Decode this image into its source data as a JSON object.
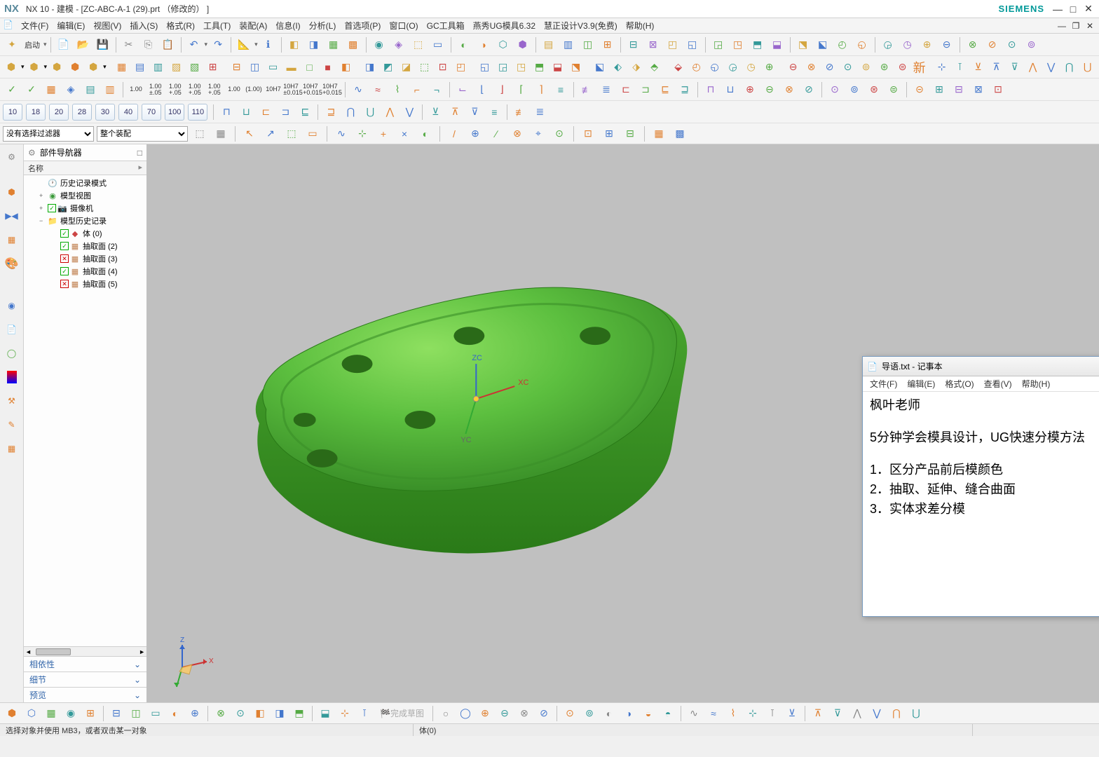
{
  "app": {
    "logo": "NX",
    "title": "NX 10 - 建模 - [ZC-ABC-A-1 (29).prt （修改的） ]",
    "brand": "SIEMENS"
  },
  "menu": {
    "items": [
      "文件(F)",
      "编辑(E)",
      "视图(V)",
      "插入(S)",
      "格式(R)",
      "工具(T)",
      "装配(A)",
      "信息(I)",
      "分析(L)",
      "首选项(P)",
      "窗口(O)",
      "GC工具箱",
      "燕秀UG模具6.32",
      "慧正设计V3.9(免费)",
      "帮助(H)"
    ]
  },
  "toolbar1": {
    "start": "启动"
  },
  "toolbar4_labels": [
    "1.00",
    "1.00\n±.05",
    "1.00\n+.05",
    "1.00\n+.05",
    "1.00\n+.05",
    "1.00",
    "(1.00)",
    "10H7",
    "10H7\n±0.015",
    "10H7\n+0.015",
    "10H7\n+0.015"
  ],
  "numrow": [
    "10",
    "18",
    "20",
    "28",
    "30",
    "40",
    "70",
    "100",
    "110"
  ],
  "filter": {
    "sel1": "没有选择过滤器",
    "sel2": "整个装配"
  },
  "nav": {
    "title": "部件导航器",
    "col": "名称",
    "items": [
      {
        "level": 0,
        "exp": "",
        "icon": "🕐",
        "label": "历史记录模式",
        "chk": ""
      },
      {
        "level": 0,
        "exp": "+",
        "icon": "◉",
        "label": "模型视图",
        "chk": "",
        "iconColor": "#3a9a3a"
      },
      {
        "level": 0,
        "exp": "+",
        "icon": "📷",
        "label": "摄像机",
        "chk": "green"
      },
      {
        "level": 0,
        "exp": "−",
        "icon": "📁",
        "label": "模型历史记录",
        "chk": "",
        "iconColor": "#d4a640"
      },
      {
        "level": 1,
        "exp": "",
        "icon": "◆",
        "label": "体 (0)",
        "chk": "green",
        "iconColor": "#cc4444"
      },
      {
        "level": 1,
        "exp": "",
        "icon": "▦",
        "label": "抽取面 (2)",
        "chk": "green",
        "iconColor": "#c08050"
      },
      {
        "level": 1,
        "exp": "",
        "icon": "▦",
        "label": "抽取面 (3)",
        "chk": "red",
        "iconColor": "#c08050"
      },
      {
        "level": 1,
        "exp": "",
        "icon": "▦",
        "label": "抽取面 (4)",
        "chk": "green",
        "iconColor": "#c08050"
      },
      {
        "level": 1,
        "exp": "",
        "icon": "▦",
        "label": "抽取面 (5)",
        "chk": "red",
        "iconColor": "#c08050"
      }
    ],
    "sections": [
      "相依性",
      "细节",
      "预览"
    ]
  },
  "notepad": {
    "title": "导语.txt - 记事本",
    "menu": [
      "文件(F)",
      "编辑(E)",
      "格式(O)",
      "查看(V)",
      "帮助(H)"
    ],
    "line1": "枫叶老师",
    "line2": "5分钟学会模具设计，UG快速分模方法",
    "line3": "1．区分产品前后模颜色",
    "line4": "2．抽取、延伸、缝合曲面",
    "line5": "3．实体求差分模"
  },
  "status": {
    "left": "选择对象并使用 MB3，或者双击某一对象",
    "center": "体(0)"
  },
  "colors": {
    "model_green": "#5cbf3f",
    "model_green_dark": "#3a9028",
    "viewport_bg": "#c0c0c0",
    "axis_x": "#cc3333",
    "axis_y": "#33aa33",
    "axis_z": "#3366cc"
  },
  "bottombar_label": "完成草图"
}
